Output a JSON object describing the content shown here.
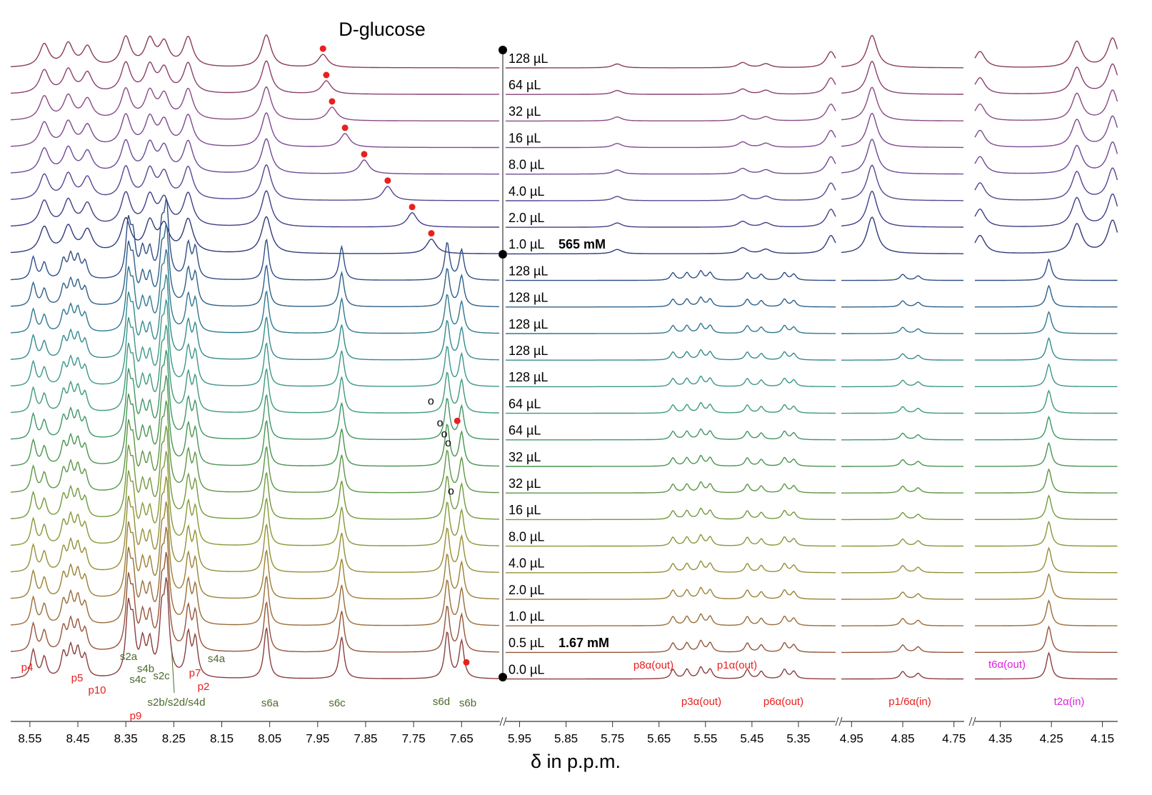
{
  "chart_data": {
    "type": "stacked_spectra",
    "title": "D-glucose",
    "xlabel": "δ in p.p.m.",
    "marker_label": "o",
    "panels": [
      {
        "xlim": [
          8.59,
          7.57
        ],
        "xticks": [
          8.55,
          8.45,
          8.35,
          8.25,
          8.15,
          8.05,
          7.95,
          7.85,
          7.75,
          7.65
        ]
      },
      {
        "xlim": [
          5.98,
          5.27
        ],
        "xticks": [
          5.95,
          5.85,
          5.75,
          5.65,
          5.55,
          5.45,
          5.35
        ]
      },
      {
        "xlim": [
          4.97,
          4.73
        ],
        "xticks": [
          4.95,
          4.85,
          4.75
        ]
      },
      {
        "xlim": [
          4.4,
          4.12
        ],
        "xticks": [
          4.35,
          4.25,
          4.15
        ]
      }
    ],
    "sets": [
      {
        "width": 0.012,
        "glucose_height": 20,
        "peaks": [
          [
            [
              8.52,
              35
            ],
            [
              8.47,
              35
            ],
            [
              8.43,
              30
            ],
            [
              8.35,
              45
            ],
            [
              8.3,
              40
            ],
            [
              8.27,
              35
            ],
            [
              8.22,
              45
            ],
            [
              8.057,
              50
            ]
          ],
          [
            [
              5.74,
              6
            ],
            [
              5.47,
              8
            ],
            [
              5.42,
              6
            ],
            [
              5.28,
              25
            ]
          ],
          [
            [
              4.91,
              50
            ]
          ],
          [
            [
              4.39,
              25
            ],
            [
              4.2,
              40
            ],
            [
              4.13,
              45
            ]
          ]
        ],
        "spectra": [
          {
            "name": "128 µL",
            "color": "#8a3d55",
            "glucose": 7.939
          },
          {
            "name": "64 µL",
            "color": "#8a4070",
            "glucose": 7.932
          },
          {
            "name": "32 µL",
            "color": "#8a4a85",
            "glucose": 7.92
          },
          {
            "name": "16 µL",
            "color": "#7d4a90",
            "glucose": 7.893
          },
          {
            "name": "8.0 µL",
            "color": "#6f4a95",
            "glucose": 7.853
          },
          {
            "name": "4.0 µL",
            "color": "#5a4593",
            "glucose": 7.804
          },
          {
            "name": "2.0 µL",
            "color": "#403f88",
            "glucose": 7.753
          },
          {
            "name": "1.0 µL",
            "color": "#303a7a",
            "glucose": 7.713,
            "concentration": "565 mM"
          }
        ]
      },
      {
        "width": 0.006,
        "peaks": [
          [
            [
              8.543,
              30
            ],
            [
              8.52,
              22
            ],
            [
              8.48,
              25
            ],
            [
              8.465,
              30
            ],
            [
              8.45,
              28
            ],
            [
              8.435,
              22
            ],
            [
              8.345,
              70
            ],
            [
              8.335,
              50
            ],
            [
              8.315,
              35
            ],
            [
              8.3,
              35
            ],
            [
              8.275,
              60
            ],
            [
              8.265,
              90
            ],
            [
              8.22,
              45
            ],
            [
              8.205,
              40
            ],
            [
              8.057,
              55
            ],
            [
              7.9,
              45
            ],
            [
              7.68,
              50
            ],
            [
              7.65,
              40
            ]
          ],
          [
            [
              5.62,
              10
            ],
            [
              5.59,
              10
            ],
            [
              5.56,
              12
            ],
            [
              5.54,
              10
            ],
            [
              5.46,
              10
            ],
            [
              5.43,
              8
            ],
            [
              5.38,
              10
            ],
            [
              5.36,
              8
            ]
          ],
          [
            [
              4.85,
              8
            ],
            [
              4.82,
              6
            ]
          ],
          [
            [
              4.255,
              28
            ]
          ]
        ],
        "spectra": [
          {
            "name": "128 µL",
            "color": "#2f4e86"
          },
          {
            "name": "128 µL",
            "color": "#2e6088"
          },
          {
            "name": "128 µL",
            "color": "#2f7890"
          },
          {
            "name": "128 µL",
            "color": "#348a8e"
          },
          {
            "name": "128 µL",
            "color": "#3d968a"
          },
          {
            "name": "64 µL",
            "color": "#3e9a7a",
            "o": 7.714
          },
          {
            "name": "64 µL",
            "color": "#3f9566",
            "o": 7.695,
            "glucose": 7.659
          },
          {
            "name": "32 µL",
            "color": "#4a9450",
            "o": 7.686
          },
          {
            "name": "32 µL",
            "color": "#5c9645",
            "o": 7.678
          },
          {
            "name": "16 µL",
            "color": "#72993d",
            "o": 7.672
          },
          {
            "name": "8.0 µL",
            "color": "#879838"
          },
          {
            "name": "4.0 µL",
            "color": "#958f35"
          },
          {
            "name": "2.0 µL",
            "color": "#9a8035"
          },
          {
            "name": "1.0 µL",
            "color": "#9a6d38"
          },
          {
            "name": "0.5 µL",
            "color": "#95553a",
            "concentration": "1.67 mM"
          },
          {
            "name": "0.0 µL",
            "color": "#8b3e3e",
            "glucose": 7.64
          }
        ]
      }
    ],
    "annotations": [
      {
        "text": "p4",
        "color": "#e8201e"
      },
      {
        "text": "p5",
        "color": "#e8201e"
      },
      {
        "text": "p10",
        "color": "#e8201e"
      },
      {
        "text": "p9",
        "color": "#e8201e"
      },
      {
        "text": "p7",
        "color": "#e8201e"
      },
      {
        "text": "p2",
        "color": "#e8201e"
      },
      {
        "text": "s2a",
        "color": "#4a6a2a"
      },
      {
        "text": "s4b",
        "color": "#4a6a2a"
      },
      {
        "text": "s4c",
        "color": "#4a6a2a"
      },
      {
        "text": "s2c",
        "color": "#4a6a2a"
      },
      {
        "text": "s4a",
        "color": "#4a6a2a"
      },
      {
        "text": "s2b/s2d/s4d",
        "color": "#4a6a2a"
      },
      {
        "text": "s6a",
        "color": "#4a6a2a"
      },
      {
        "text": "s6c",
        "color": "#4a6a2a"
      },
      {
        "text": "s6d",
        "color": "#4a6a2a"
      },
      {
        "text": "s6b",
        "color": "#4a6a2a"
      },
      {
        "text": "p8α(out)",
        "color": "#e8201e"
      },
      {
        "text": "p1α(out)",
        "color": "#e8201e"
      },
      {
        "text": "p3α(out)",
        "color": "#e8201e"
      },
      {
        "text": "p6α(out)",
        "color": "#e8201e"
      },
      {
        "text": "p1/6α(in)",
        "color": "#e8201e"
      },
      {
        "text": "t6α(out)",
        "color": "#e020e0"
      },
      {
        "text": "t2α(in)",
        "color": "#e020e0"
      }
    ]
  }
}
